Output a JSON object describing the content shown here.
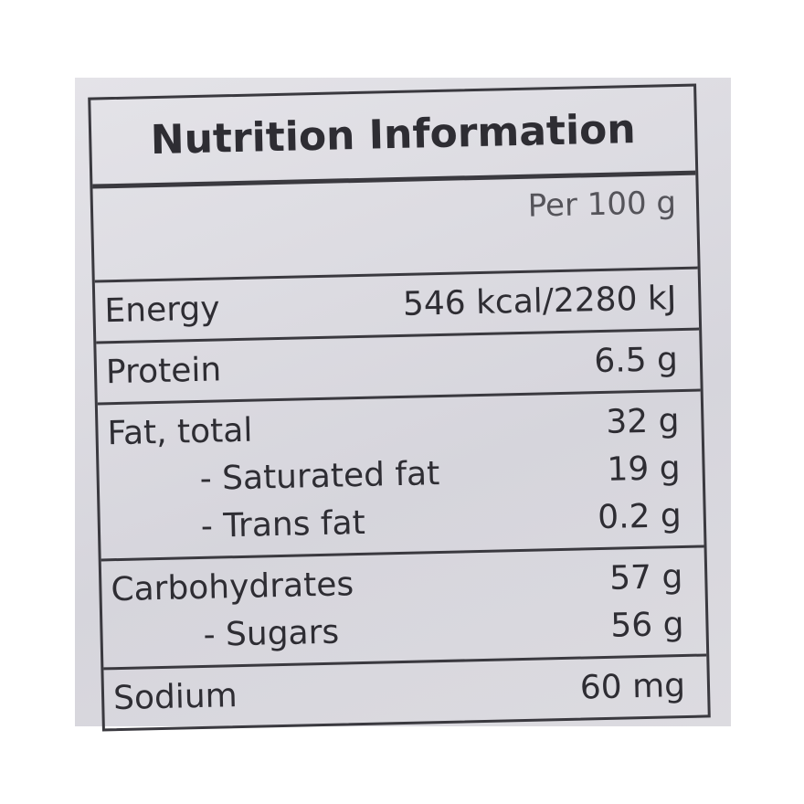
{
  "title": "Nutrition Information",
  "basis": "Per 100 g",
  "sections": [
    {
      "rows": [
        {
          "label": "Energy",
          "value": "546 kcal/2280 kJ"
        }
      ]
    },
    {
      "rows": [
        {
          "label": "Protein",
          "value": "6.5 g"
        }
      ]
    },
    {
      "rows": [
        {
          "label": "Fat, total",
          "value": "32 g"
        },
        {
          "label": "- Saturated fat",
          "value": "19 g",
          "sub": true
        },
        {
          "label": "- Trans fat",
          "value": "0.2 g",
          "sub": true
        }
      ]
    },
    {
      "rows": [
        {
          "label": "Carbohydrates",
          "value": "57 g"
        },
        {
          "label": "- Sugars",
          "value": "56 g",
          "sub": true
        }
      ]
    },
    {
      "rows": [
        {
          "label": "Sodium",
          "value": "60 mg"
        }
      ]
    }
  ]
}
